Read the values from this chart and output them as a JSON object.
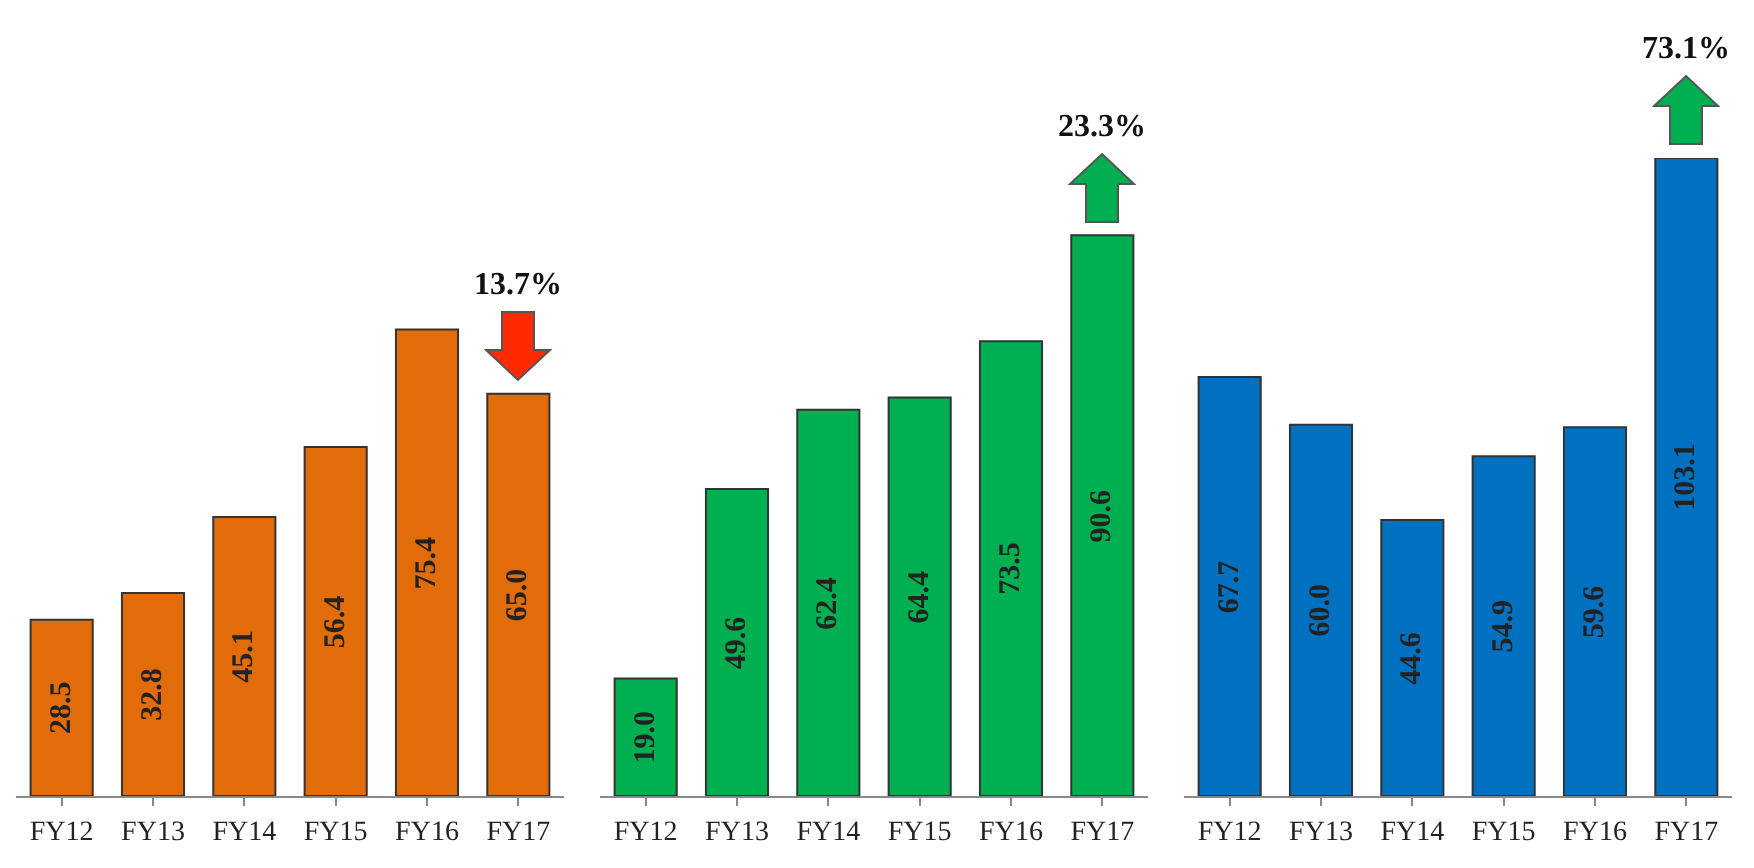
{
  "chart_data": [
    {
      "type": "bar",
      "categories": [
        "FY12",
        "FY13",
        "FY14",
        "FY15",
        "FY16",
        "FY17"
      ],
      "values": [
        28.5,
        32.8,
        45.1,
        56.4,
        75.4,
        65.0
      ],
      "value_labels": [
        "28.5",
        "32.8",
        "45.1",
        "56.4",
        "75.4",
        "65.0"
      ],
      "color": "#e36c0a",
      "annotations": [
        {
          "text": "13.7%",
          "x": "FY17",
          "y": 65.0
        }
      ]
    },
    {
      "type": "bar",
      "categories": [
        "FY12",
        "FY13",
        "FY14",
        "FY15",
        "FY16",
        "FY17"
      ],
      "values": [
        19.0,
        49.6,
        62.4,
        64.4,
        73.5,
        90.6
      ],
      "value_labels": [
        "19.0",
        "49.6",
        "62.4",
        "64.4",
        "73.5",
        "90.6"
      ],
      "color": "#00b050",
      "annotations": [
        {
          "text": "23.3%",
          "x": "FY17",
          "y": 90.6
        }
      ]
    },
    {
      "type": "bar",
      "categories": [
        "FY12",
        "FY13",
        "FY14",
        "FY15",
        "FY16",
        "FY17"
      ],
      "values": [
        67.7,
        60.0,
        44.6,
        54.9,
        59.6,
        103.1
      ],
      "value_labels": [
        "67.7",
        "60.0",
        "44.6",
        "54.9",
        "59.6",
        "103.1"
      ],
      "color": "#0070c0",
      "annotations": [
        {
          "text": "73.1%",
          "x": "FY17",
          "y": 103.1
        }
      ]
    }
  ]
}
